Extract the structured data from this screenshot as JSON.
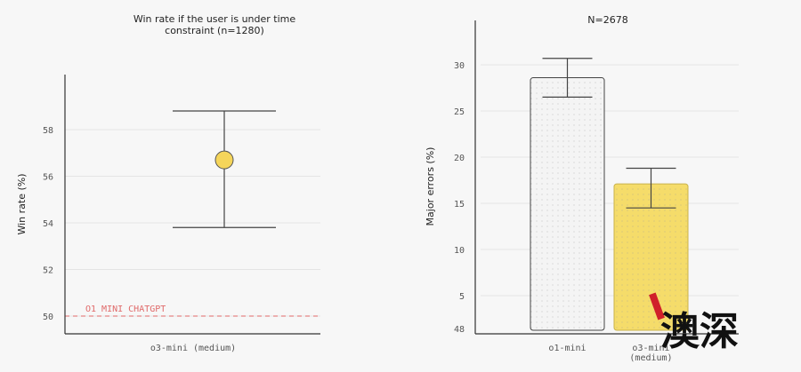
{
  "chart_data": [
    {
      "type": "scatter",
      "title_lines": [
        "Win rate if the user is under time",
        "constraint (n=1280)"
      ],
      "ylabel": "Win rate (%)",
      "xlabel": "",
      "categories": [
        "o3-mini (medium)"
      ],
      "values": [
        56.7
      ],
      "error_high": [
        58.8
      ],
      "error_low": [
        53.8
      ],
      "yticks": [
        50,
        52,
        54,
        56,
        58
      ],
      "ylim": [
        49.2,
        60.5
      ],
      "grid": true,
      "reference_line": {
        "value": 50,
        "label": "O1 MINI CHATGPT",
        "color": "#e06a6a"
      },
      "point_color": "#f5d55a"
    },
    {
      "type": "bar",
      "title": "N=2678",
      "ylabel": "Major errors (%)",
      "xlabel": "",
      "categories": [
        [
          "o1-mini"
        ],
        [
          "o3-mini",
          "(medium)"
        ]
      ],
      "values": [
        28.6,
        17.1
      ],
      "error_high": [
        30.7,
        18.8
      ],
      "error_low": [
        26.5,
        14.5
      ],
      "bar_colors": [
        "#f4f4f4",
        "#f5dc6a"
      ],
      "yticks": [
        5,
        10,
        15,
        20,
        25,
        30
      ],
      "ytick_labels": [
        "5",
        "10",
        "15",
        "20",
        "25",
        "30"
      ],
      "baseline_label": "48",
      "ylim": [
        0.8,
        34.8
      ],
      "grid": true
    }
  ],
  "watermark": {
    "text": "澳深",
    "accent": "#d0202a"
  }
}
